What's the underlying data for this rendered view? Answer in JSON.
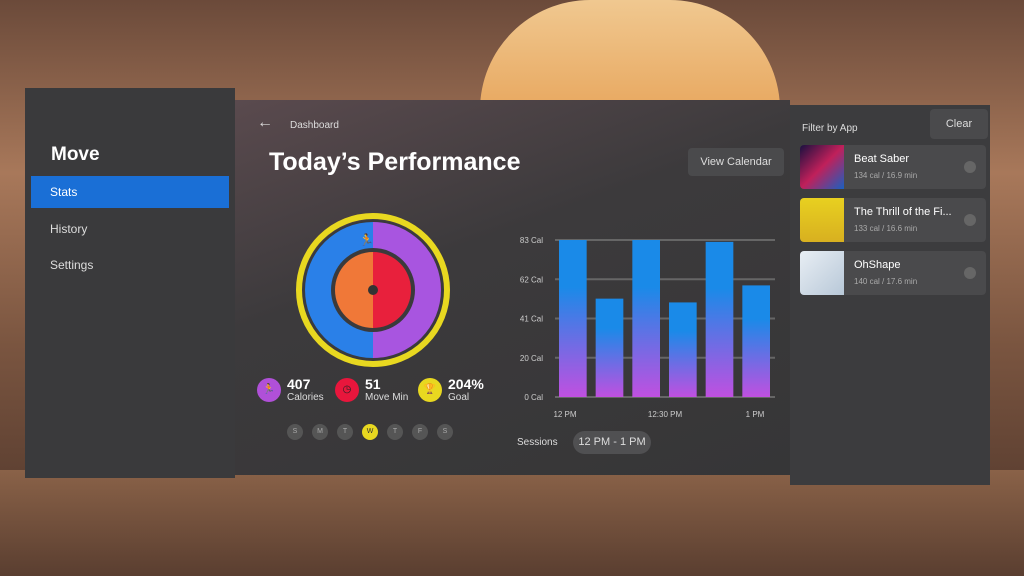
{
  "sidebar": {
    "title": "Move",
    "items": [
      {
        "label": "Stats",
        "active": true
      },
      {
        "label": "History"
      },
      {
        "label": "Settings"
      }
    ]
  },
  "header": {
    "breadcrumb": "Dashboard",
    "title": "Today’s Performance",
    "view_calendar": "View Calendar"
  },
  "summary": {
    "calories": {
      "value": "407",
      "label": "Calories",
      "color": "#b050d8"
    },
    "move_min": {
      "value": "51",
      "label": "Move Min",
      "color": "#e8163c"
    },
    "goal": {
      "value": "204%",
      "label": "Goal",
      "color": "#e8d820"
    }
  },
  "days": [
    {
      "label": "S"
    },
    {
      "label": "M"
    },
    {
      "label": "T"
    },
    {
      "label": "W",
      "selected": true
    },
    {
      "label": "T"
    },
    {
      "label": "F"
    },
    {
      "label": "S"
    }
  ],
  "chart_data": {
    "type": "bar",
    "yticks": [
      "0 Cal",
      "20 Cal",
      "41 Cal",
      "62 Cal",
      "83 Cal"
    ],
    "ylim": [
      0,
      83
    ],
    "xticks": [
      "12 PM",
      "12:30 PM",
      "1 PM"
    ],
    "values": [
      83,
      52,
      83,
      50,
      82,
      59
    ],
    "grid": true,
    "colors": [
      "#1a8ae8",
      "#c050e0"
    ]
  },
  "sessions": {
    "label": "Sessions",
    "value": "12 PM - 1 PM"
  },
  "filter": {
    "label": "Filter by App",
    "clear": "Clear",
    "apps": [
      {
        "name": "Beat Saber",
        "stats": "134 cal / 16.9 min"
      },
      {
        "name": "The Thrill of the Fi...",
        "stats": "133 cal / 16.6 min"
      },
      {
        "name": "OhShape",
        "stats": "140 cal / 17.6 min"
      }
    ]
  }
}
